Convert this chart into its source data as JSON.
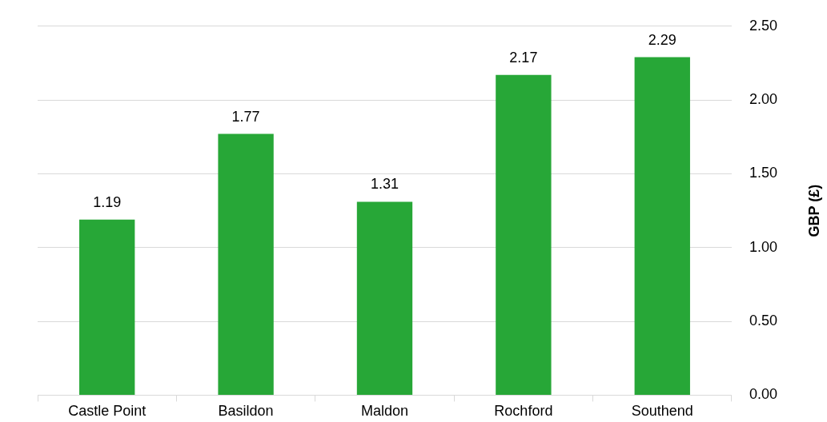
{
  "chart_data": {
    "type": "bar",
    "ylabel": "GBP (£)",
    "categories": [
      "Castle Point",
      "Basildon",
      "Maldon",
      "Rochford",
      "Southend"
    ],
    "values": [
      1.19,
      1.77,
      1.31,
      2.17,
      2.29
    ],
    "color": "#27a737",
    "ylim": [
      0,
      2.5
    ],
    "yticks": [
      {
        "value": 0,
        "label": "0.00"
      },
      {
        "value": 0.5,
        "label": "0.50"
      },
      {
        "value": 1,
        "label": "1.00"
      },
      {
        "value": 1.5,
        "label": "1.50"
      },
      {
        "value": 2,
        "label": "2.00"
      },
      {
        "value": 2.5,
        "label": "2.50"
      }
    ],
    "grid": "y",
    "legend": false,
    "data_labels": true
  }
}
